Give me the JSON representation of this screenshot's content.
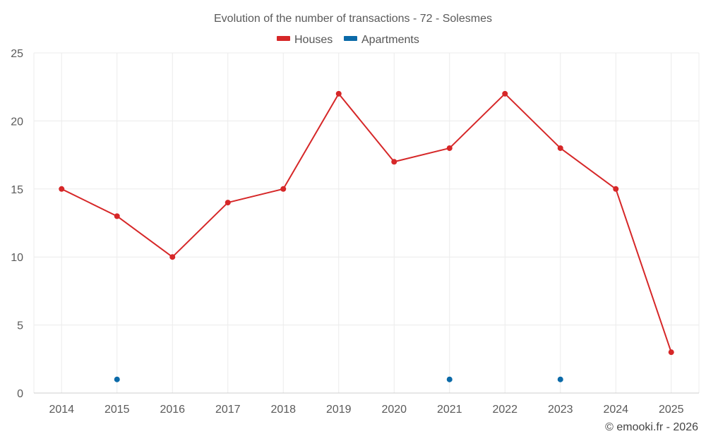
{
  "chart_data": {
    "type": "line",
    "title": "Evolution of the number of transactions - 72 - Solesmes",
    "categories": [
      "2014",
      "2015",
      "2016",
      "2017",
      "2018",
      "2019",
      "2020",
      "2021",
      "2022",
      "2023",
      "2024",
      "2025"
    ],
    "series": [
      {
        "name": "Houses",
        "color": "#d62728",
        "connected": true,
        "values": [
          15,
          13,
          10,
          14,
          15,
          22,
          17,
          18,
          22,
          18,
          15,
          3
        ]
      },
      {
        "name": "Apartments",
        "color": "#0b6aa8",
        "connected": false,
        "values": [
          null,
          1,
          null,
          null,
          null,
          null,
          null,
          1,
          null,
          1,
          null,
          null
        ]
      }
    ],
    "y_ticks": [
      0,
      5,
      10,
      15,
      20,
      25
    ],
    "ylim": [
      0,
      25
    ],
    "xlabel": "",
    "ylabel": "",
    "grid": true,
    "legend_position": "top-center"
  },
  "credit": "© emooki.fr - 2026"
}
